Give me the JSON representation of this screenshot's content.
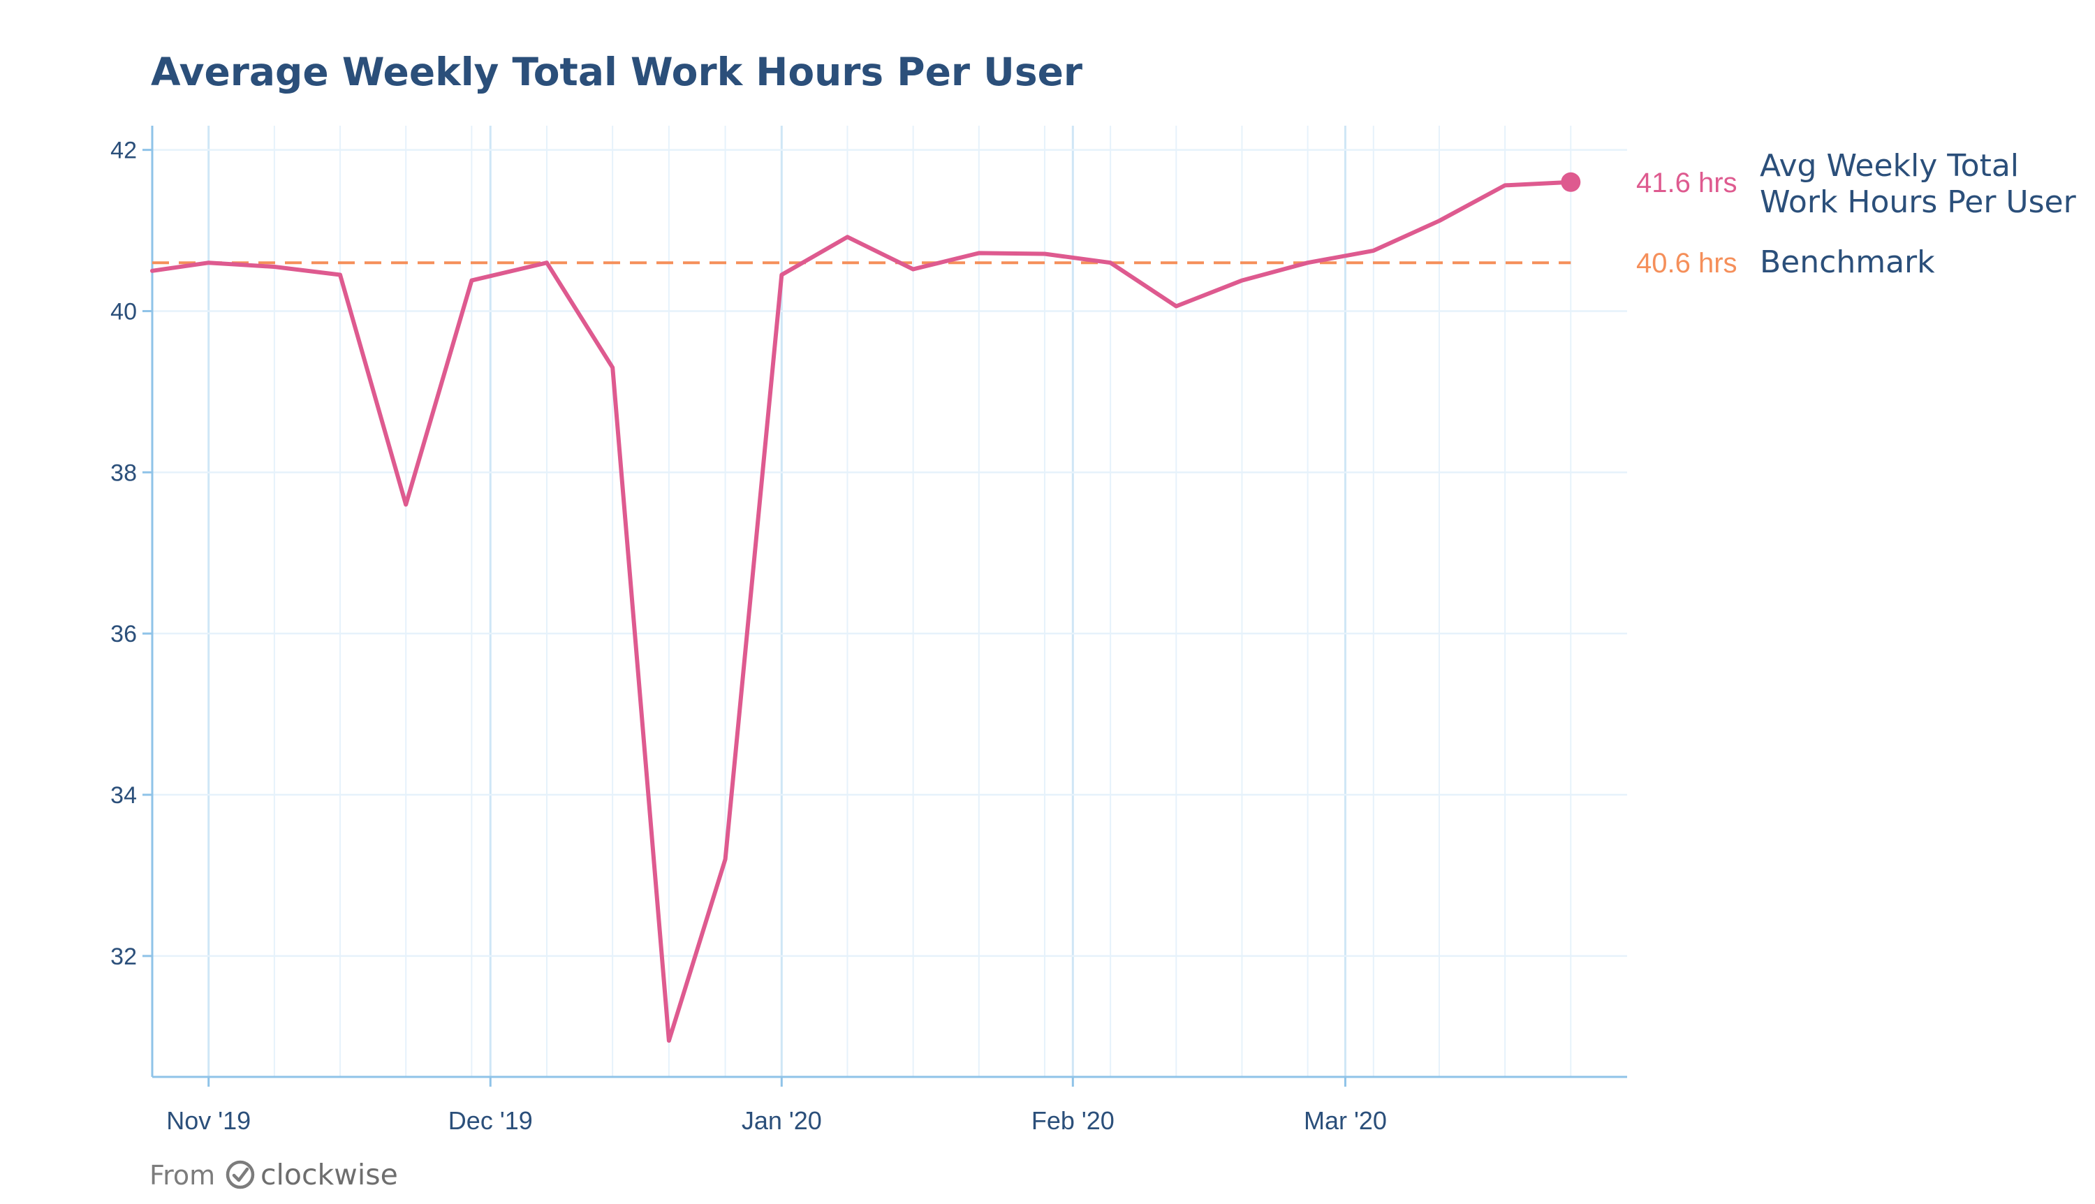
{
  "chart_data": {
    "type": "line",
    "title": "Average Weekly Total Work Hours Per User",
    "xlabel": "",
    "ylabel": "",
    "x_tick_labels": [
      "Nov '19",
      "Dec '19",
      "Jan '20",
      "Feb '20",
      "Mar '20"
    ],
    "x_tick_dates": [
      "2019-11-01",
      "2019-12-01",
      "2020-01-01",
      "2020-02-01",
      "2020-03-01"
    ],
    "xlim": [
      "2019-10-26",
      "2020-03-31"
    ],
    "ylim": [
      30.5,
      42.3
    ],
    "y_ticks": [
      32,
      34,
      36,
      38,
      40,
      42
    ],
    "grid": true,
    "series": [
      {
        "name": "Avg Weekly Total Work Hours Per User",
        "color": "#de5a8f",
        "end_marker": true,
        "end_label": "41.6 hrs",
        "x": [
          "2019-10-26",
          "2019-11-01",
          "2019-11-08",
          "2019-11-15",
          "2019-11-22",
          "2019-11-29",
          "2019-12-07",
          "2019-12-14",
          "2019-12-20",
          "2019-12-26",
          "2020-01-01",
          "2020-01-08",
          "2020-01-15",
          "2020-01-22",
          "2020-01-29",
          "2020-02-05",
          "2020-02-12",
          "2020-02-19",
          "2020-02-26",
          "2020-03-04",
          "2020-03-11",
          "2020-03-18",
          "2020-03-25"
        ],
        "values": [
          40.5,
          40.6,
          40.55,
          40.45,
          37.6,
          40.38,
          40.6,
          39.3,
          30.95,
          33.2,
          40.45,
          40.92,
          40.52,
          40.72,
          40.71,
          40.6,
          40.06,
          40.38,
          40.6,
          40.75,
          41.12,
          41.56,
          41.6
        ]
      },
      {
        "name": "Benchmark",
        "color": "#f58f5a",
        "style": "dashed",
        "end_label": "40.6 hrs",
        "x": [
          "2019-10-26",
          "2020-03-25"
        ],
        "values": [
          40.6,
          40.6
        ]
      }
    ],
    "colors": {
      "title": "#2b4f7a",
      "tick": "#2b4f7a",
      "axis": "#8fc3e8",
      "grid_major": "#cfe6f6",
      "grid_minor": "#e6f2fb",
      "footer": "#7c7c7c"
    }
  },
  "footer": {
    "from_label": "From",
    "brand": "clockwise",
    "brand_icon": "clockwise-logo-icon"
  }
}
